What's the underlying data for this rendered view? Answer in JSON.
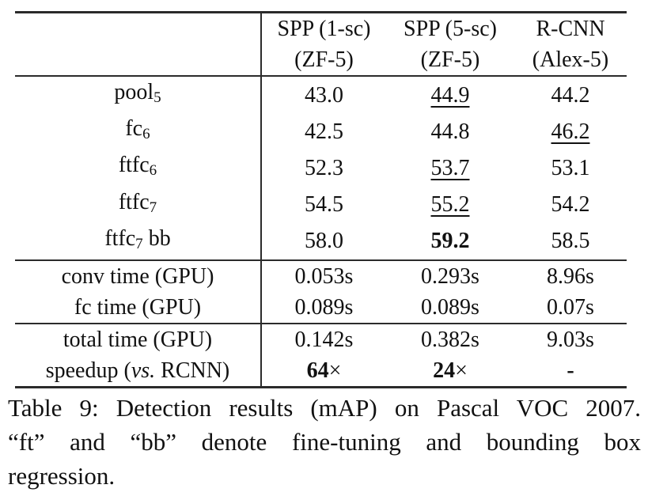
{
  "table": {
    "header": {
      "cols": [
        {
          "line1": "SPP (1-sc)",
          "line2": "(ZF-5)"
        },
        {
          "line1": "SPP (5-sc)",
          "line2": "(ZF-5)"
        },
        {
          "line1": "R-CNN",
          "line2": "(Alex-5)"
        }
      ]
    },
    "rows": [
      {
        "label": [
          "pool",
          "5",
          ""
        ],
        "values": [
          "43.0",
          "44.9",
          "44.2"
        ]
      },
      {
        "label": [
          "fc",
          "6",
          ""
        ],
        "values": [
          "42.5",
          "44.8",
          "46.2"
        ]
      },
      {
        "label": [
          "ftfc",
          "6",
          ""
        ],
        "values": [
          "52.3",
          "53.7",
          "53.1"
        ]
      },
      {
        "label": [
          "ftfc",
          "7",
          ""
        ],
        "values": [
          "54.5",
          "55.2",
          "54.2"
        ]
      },
      {
        "label": [
          "ftfc",
          "7",
          " bb"
        ],
        "values": [
          "58.0",
          "59.2",
          "58.5"
        ]
      },
      {
        "label": [
          "conv time (GPU)",
          "",
          ""
        ],
        "values": [
          "0.053s",
          "0.293s",
          "8.96s"
        ]
      },
      {
        "label": [
          "fc time (GPU)",
          "",
          ""
        ],
        "values": [
          "0.089s",
          "0.089s",
          "0.07s"
        ]
      },
      {
        "label": [
          "total time (GPU)",
          "",
          ""
        ],
        "values": [
          "0.142s",
          "0.382s",
          "9.03s"
        ]
      },
      {
        "label": [
          "speedup (",
          "vs.",
          " RCNN)"
        ],
        "values": [
          "64",
          "24",
          "-"
        ],
        "times": "×"
      }
    ]
  },
  "caption": {
    "line1": "Table 9: Detection results (mAP) on Pascal VOC 2007.",
    "line2": "“ft” and “bb” denote fine-tuning and bounding box",
    "line3": "regression."
  },
  "colors": {
    "background": "#ffffff",
    "text": "#111111",
    "rule": "#2b2b2b"
  }
}
